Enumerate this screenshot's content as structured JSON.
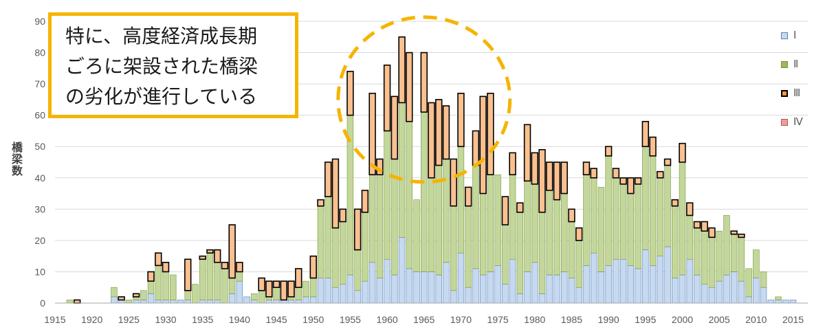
{
  "chart_data": {
    "type": "bar",
    "stacked": true,
    "ylabel": "橋梁数",
    "ylim": [
      0,
      90
    ],
    "yticks": [
      0,
      10,
      20,
      30,
      40,
      50,
      60,
      70,
      80,
      90
    ],
    "xlim": [
      1915,
      2017
    ],
    "xticks": [
      1915,
      1920,
      1925,
      1930,
      1935,
      1940,
      1945,
      1950,
      1955,
      1960,
      1965,
      1970,
      1975,
      1980,
      1985,
      1990,
      1995,
      2000,
      2005,
      2010,
      2015
    ],
    "grid": true,
    "legend_position": "right",
    "x": [
      1917,
      1918,
      1923,
      1924,
      1925,
      1926,
      1927,
      1928,
      1929,
      1930,
      1931,
      1932,
      1933,
      1934,
      1935,
      1936,
      1937,
      1938,
      1939,
      1940,
      1941,
      1942,
      1943,
      1944,
      1945,
      1946,
      1947,
      1948,
      1949,
      1950,
      1951,
      1952,
      1953,
      1954,
      1955,
      1956,
      1957,
      1958,
      1959,
      1960,
      1961,
      1962,
      1963,
      1964,
      1965,
      1966,
      1967,
      1968,
      1969,
      1970,
      1971,
      1972,
      1973,
      1974,
      1975,
      1976,
      1977,
      1978,
      1979,
      1980,
      1981,
      1982,
      1983,
      1984,
      1985,
      1986,
      1987,
      1988,
      1989,
      1990,
      1991,
      1992,
      1993,
      1994,
      1995,
      1996,
      1997,
      1998,
      1999,
      2000,
      2001,
      2002,
      2003,
      2004,
      2005,
      2006,
      2007,
      2008,
      2009,
      2010,
      2011,
      2012,
      2013,
      2014,
      2015
    ],
    "series": [
      {
        "name": "Ⅰ",
        "color": "#c5d9f1",
        "values": [
          0,
          0,
          2,
          1,
          0,
          1,
          1,
          3,
          1,
          1,
          1,
          1,
          1,
          0,
          1,
          1,
          1,
          0,
          3,
          7,
          2,
          1,
          0,
          1,
          1,
          1,
          1,
          1,
          2,
          2,
          8,
          8,
          5,
          6,
          9,
          4,
          7,
          13,
          8,
          14,
          9,
          21,
          11,
          10,
          10,
          10,
          9,
          13,
          4,
          16,
          5,
          11,
          9,
          10,
          12,
          6,
          14,
          3,
          10,
          13,
          3,
          9,
          9,
          10,
          8,
          5,
          12,
          16,
          10,
          12,
          14,
          14,
          12,
          11,
          17,
          12,
          15,
          18,
          8,
          9,
          14,
          9,
          6,
          5,
          7,
          9,
          10,
          7,
          2,
          8,
          5,
          1,
          1,
          1,
          1
        ]
      },
      {
        "name": "Ⅱ",
        "color": "#c4d79b",
        "values": [
          1,
          0,
          3,
          0,
          1,
          1,
          3,
          4,
          11,
          9,
          8,
          0,
          3,
          6,
          13,
          15,
          12,
          11,
          5,
          3,
          0,
          2,
          4,
          1,
          4,
          0,
          1,
          4,
          5,
          6,
          23,
          26,
          19,
          20,
          51,
          13,
          22,
          28,
          33,
          41,
          37,
          43,
          47,
          23,
          51,
          30,
          35,
          33,
          27,
          34,
          26,
          33,
          26,
          31,
          29,
          19,
          27,
          26,
          29,
          25,
          26,
          27,
          24,
          25,
          18,
          15,
          29,
          24,
          27,
          35,
          26,
          24,
          23,
          27,
          33,
          35,
          25,
          26,
          23,
          36,
          14,
          15,
          17,
          16,
          16,
          19,
          12,
          14,
          9,
          9,
          5,
          0,
          1,
          0,
          0
        ]
      },
      {
        "name": "Ⅲ",
        "color": "#fac090",
        "values": [
          0,
          1,
          0,
          1,
          0,
          1,
          0,
          3,
          4,
          3,
          0,
          0,
          10,
          0,
          1,
          1,
          4,
          2,
          17,
          3,
          0,
          0,
          4,
          5,
          2,
          6,
          5,
          6,
          0,
          7,
          2,
          11,
          22,
          4,
          14,
          13,
          7,
          26,
          5,
          21,
          20,
          21,
          22,
          0,
          19,
          24,
          21,
          17,
          15,
          17,
          6,
          11,
          31,
          26,
          0,
          9,
          7,
          3,
          18,
          10,
          20,
          9,
          12,
          10,
          4,
          4,
          4,
          3,
          0,
          3,
          3,
          2,
          5,
          2,
          8,
          6,
          2,
          2,
          2,
          6,
          4,
          2,
          3,
          3,
          0,
          0,
          1,
          1,
          0,
          0,
          0,
          0,
          0,
          0,
          0
        ]
      },
      {
        "name": "Ⅳ",
        "color": "#e6b8b7",
        "values": [
          0,
          0,
          0,
          0,
          0,
          0,
          0,
          0,
          0,
          0,
          0,
          0,
          0,
          0,
          0,
          0,
          0,
          0,
          0,
          0,
          0,
          0,
          0,
          0,
          0,
          0,
          0,
          0,
          0,
          0,
          0,
          0,
          0,
          0,
          0,
          0,
          0,
          0,
          0,
          0,
          0,
          0,
          0,
          0,
          0,
          0,
          0,
          0,
          0,
          0,
          0,
          0,
          0,
          0,
          0,
          0,
          0,
          0,
          0,
          0,
          0,
          0,
          0,
          0,
          0,
          0,
          0,
          0,
          0,
          0,
          0,
          0,
          0,
          0,
          0,
          0,
          0,
          0,
          0,
          0,
          0,
          0,
          0,
          0,
          0,
          0,
          0,
          0,
          0,
          0,
          0,
          0,
          0,
          0,
          0
        ]
      }
    ],
    "annotations": [
      {
        "type": "text_box",
        "lines": [
          "特に、高度経済成長期",
          "ごろに架設された橋梁",
          "の劣化が進行している"
        ],
        "border_color": "#f5b400"
      },
      {
        "type": "dashed_circle",
        "center_year": 1965,
        "center_value": 65,
        "color": "#f5b400"
      }
    ]
  }
}
